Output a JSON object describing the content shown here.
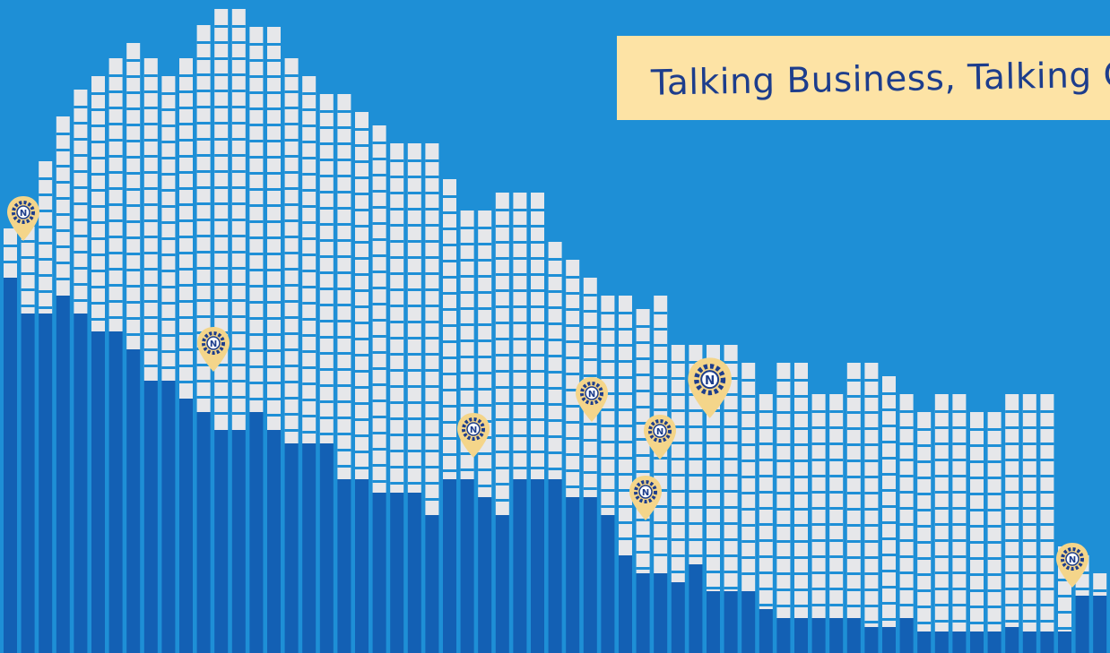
{
  "banner": {
    "text": "Talking Business, Talking Change"
  },
  "colors": {
    "background": "#1e8fd6",
    "bar_light": "#e6e7ea",
    "bar_dark": "#1360b4",
    "banner_bg": "#fde3a5",
    "banner_text": "#1d3d8c",
    "pin_fill": "#f4d58a",
    "pin_emblem": "#1d3d8c"
  },
  "pin": {
    "icon": "map-pin-gear-logo-icon",
    "emblem_letter": "N"
  }
}
